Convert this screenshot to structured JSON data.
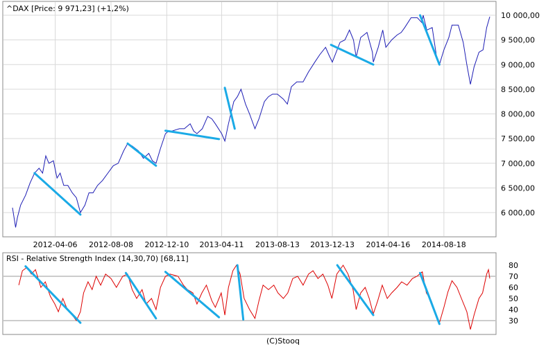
{
  "footer": "(C)Stooq",
  "colors": {
    "price_line": "#1c1cb4",
    "rsi_line": "#dd0000",
    "trendline": "#1aaae6",
    "grid": "#d9d9d9",
    "frame": "#888888",
    "background": "#ffffff"
  },
  "chart_data": [
    {
      "type": "line",
      "title": "^DAX [Price: 9 971,23] (+1,2%)",
      "xlabel": "",
      "ylabel": "",
      "x_start": "2012-01-02",
      "x_end": "2014-11-28",
      "x_tick_labels": [
        "2012-04-06",
        "2012-08-08",
        "2012-12-10",
        "2013-04-11",
        "2013-08-13",
        "2013-12-13",
        "2014-04-16",
        "2014-08-18"
      ],
      "y_tick_labels": [
        "6 000,00",
        "6 500,00",
        "7 000,00",
        "7 500,00",
        "8 000,00",
        "8 500,00",
        "9 000,00",
        "9 500,00",
        "10 000,00"
      ],
      "y_ticks": [
        6000,
        6500,
        7000,
        7500,
        8000,
        8500,
        9000,
        9500,
        10000
      ],
      "ylim": [
        5650,
        10100
      ],
      "grid": true,
      "series": [
        {
          "points": [
            [
              "2012-01-02",
              6100
            ],
            [
              "2012-01-09",
              5700
            ],
            [
              "2012-01-13",
              5900
            ],
            [
              "2012-01-20",
              6150
            ],
            [
              "2012-01-31",
              6350
            ],
            [
              "2012-02-10",
              6600
            ],
            [
              "2012-02-20",
              6800
            ],
            [
              "2012-03-01",
              6900
            ],
            [
              "2012-03-09",
              6800
            ],
            [
              "2012-03-16",
              7150
            ],
            [
              "2012-03-23",
              7000
            ],
            [
              "2012-04-02",
              7050
            ],
            [
              "2012-04-10",
              6700
            ],
            [
              "2012-04-17",
              6800
            ],
            [
              "2012-04-25",
              6550
            ],
            [
              "2012-05-04",
              6550
            ],
            [
              "2012-05-14",
              6400
            ],
            [
              "2012-05-23",
              6300
            ],
            [
              "2012-06-01",
              6000
            ],
            [
              "2012-06-11",
              6150
            ],
            [
              "2012-06-20",
              6400
            ],
            [
              "2012-06-29",
              6400
            ],
            [
              "2012-07-09",
              6550
            ],
            [
              "2012-07-20",
              6650
            ],
            [
              "2012-08-01",
              6800
            ],
            [
              "2012-08-13",
              6950
            ],
            [
              "2012-08-24",
              7000
            ],
            [
              "2012-09-05",
              7250
            ],
            [
              "2012-09-14",
              7400
            ],
            [
              "2012-09-24",
              7350
            ],
            [
              "2012-10-08",
              7250
            ],
            [
              "2012-10-19",
              7100
            ],
            [
              "2012-10-31",
              7200
            ],
            [
              "2012-11-08",
              7050
            ],
            [
              "2012-11-16",
              7000
            ],
            [
              "2012-11-26",
              7300
            ],
            [
              "2012-12-07",
              7600
            ],
            [
              "2012-12-14",
              7650
            ],
            [
              "2012-12-21",
              7650
            ],
            [
              "2013-01-07",
              7700
            ],
            [
              "2013-01-18",
              7700
            ],
            [
              "2013-01-31",
              7800
            ],
            [
              "2013-02-08",
              7650
            ],
            [
              "2013-02-15",
              7600
            ],
            [
              "2013-02-27",
              7700
            ],
            [
              "2013-03-11",
              7950
            ],
            [
              "2013-03-20",
              7900
            ],
            [
              "2013-03-28",
              7800
            ],
            [
              "2013-04-11",
              7600
            ],
            [
              "2013-04-18",
              7450
            ],
            [
              "2013-04-26",
              7800
            ],
            [
              "2013-05-08",
              8250
            ],
            [
              "2013-05-16",
              8350
            ],
            [
              "2013-05-24",
              8500
            ],
            [
              "2013-06-03",
              8200
            ],
            [
              "2013-06-12",
              8000
            ],
            [
              "2013-06-24",
              7700
            ],
            [
              "2013-07-03",
              7900
            ],
            [
              "2013-07-15",
              8250
            ],
            [
              "2013-07-24",
              8350
            ],
            [
              "2013-08-02",
              8400
            ],
            [
              "2013-08-13",
              8400
            ],
            [
              "2013-08-26",
              8300
            ],
            [
              "2013-09-04",
              8200
            ],
            [
              "2013-09-13",
              8550
            ],
            [
              "2013-09-25",
              8650
            ],
            [
              "2013-10-09",
              8650
            ],
            [
              "2013-10-21",
              8850
            ],
            [
              "2013-11-04",
              9050
            ],
            [
              "2013-11-15",
              9200
            ],
            [
              "2013-11-28",
              9350
            ],
            [
              "2013-12-05",
              9200
            ],
            [
              "2013-12-13",
              9050
            ],
            [
              "2013-12-30",
              9450
            ],
            [
              "2014-01-10",
              9500
            ],
            [
              "2014-01-20",
              9700
            ],
            [
              "2014-01-29",
              9500
            ],
            [
              "2014-02-04",
              9150
            ],
            [
              "2014-02-14",
              9550
            ],
            [
              "2014-02-28",
              9650
            ],
            [
              "2014-03-12",
              9250
            ],
            [
              "2014-03-14",
              9050
            ],
            [
              "2014-03-25",
              9350
            ],
            [
              "2014-04-04",
              9700
            ],
            [
              "2014-04-11",
              9350
            ],
            [
              "2014-04-24",
              9500
            ],
            [
              "2014-05-06",
              9600
            ],
            [
              "2014-05-15",
              9650
            ],
            [
              "2014-05-23",
              9750
            ],
            [
              "2014-06-06",
              9950
            ],
            [
              "2014-06-20",
              9950
            ],
            [
              "2014-06-30",
              9850
            ],
            [
              "2014-07-03",
              10000
            ],
            [
              "2014-07-11",
              9700
            ],
            [
              "2014-07-23",
              9750
            ],
            [
              "2014-08-01",
              9200
            ],
            [
              "2014-08-08",
              9000
            ],
            [
              "2014-08-18",
              9300
            ],
            [
              "2014-08-29",
              9550
            ],
            [
              "2014-09-05",
              9800
            ],
            [
              "2014-09-19",
              9800
            ],
            [
              "2014-09-30",
              9450
            ],
            [
              "2014-10-08",
              9000
            ],
            [
              "2014-10-16",
              8600
            ],
            [
              "2014-10-24",
              8950
            ],
            [
              "2014-11-04",
              9250
            ],
            [
              "2014-11-13",
              9300
            ],
            [
              "2014-11-21",
              9750
            ],
            [
              "2014-11-28",
              9971
            ]
          ]
        }
      ],
      "trendlines": [
        [
          [
            "2012-02-20",
            6800
          ],
          [
            "2012-06-01",
            5960
          ]
        ],
        [
          [
            "2012-09-14",
            7400
          ],
          [
            "2012-11-16",
            6950
          ]
        ],
        [
          [
            "2012-12-07",
            7660
          ],
          [
            "2013-04-05",
            7490
          ]
        ],
        [
          [
            "2013-04-18",
            8530
          ],
          [
            "2013-05-10",
            7700
          ]
        ],
        [
          [
            "2013-12-10",
            9400
          ],
          [
            "2014-03-14",
            9000
          ]
        ],
        [
          [
            "2014-06-26",
            10000
          ],
          [
            "2014-08-08",
            9000
          ]
        ]
      ]
    },
    {
      "type": "line",
      "title": "RSI - Relative Strength Index (14,30,70) [68,11]",
      "xlabel": "",
      "ylabel": "",
      "x_start": "2012-01-02",
      "x_end": "2014-11-28",
      "y_tick_labels": [
        "30",
        "40",
        "50",
        "60",
        "70",
        "80"
      ],
      "y_ticks": [
        30,
        40,
        50,
        60,
        70,
        80
      ],
      "ylim": [
        20,
        85
      ],
      "reference_lines": [
        30,
        70
      ],
      "grid": false,
      "series": [
        {
          "points": [
            [
              "2012-01-16",
              62
            ],
            [
              "2012-01-24",
              75
            ],
            [
              "2012-02-03",
              78
            ],
            [
              "2012-02-13",
              72
            ],
            [
              "2012-02-22",
              76
            ],
            [
              "2012-03-05",
              60
            ],
            [
              "2012-03-15",
              65
            ],
            [
              "2012-03-26",
              52
            ],
            [
              "2012-04-05",
              45
            ],
            [
              "2012-04-13",
              38
            ],
            [
              "2012-04-23",
              50
            ],
            [
              "2012-05-03",
              40
            ],
            [
              "2012-05-14",
              35
            ],
            [
              "2012-05-23",
              30
            ],
            [
              "2012-06-01",
              38
            ],
            [
              "2012-06-08",
              55
            ],
            [
              "2012-06-18",
              65
            ],
            [
              "2012-06-27",
              58
            ],
            [
              "2012-07-06",
              70
            ],
            [
              "2012-07-16",
              62
            ],
            [
              "2012-07-27",
              72
            ],
            [
              "2012-08-08",
              68
            ],
            [
              "2012-08-20",
              60
            ],
            [
              "2012-09-03",
              70
            ],
            [
              "2012-09-14",
              72
            ],
            [
              "2012-09-24",
              58
            ],
            [
              "2012-10-04",
              50
            ],
            [
              "2012-10-16",
              58
            ],
            [
              "2012-10-25",
              45
            ],
            [
              "2012-11-06",
              50
            ],
            [
              "2012-11-16",
              40
            ],
            [
              "2012-11-26",
              60
            ],
            [
              "2012-12-07",
              70
            ],
            [
              "2012-12-17",
              72
            ],
            [
              "2013-01-04",
              70
            ],
            [
              "2013-01-16",
              62
            ],
            [
              "2013-01-25",
              58
            ],
            [
              "2013-02-06",
              55
            ],
            [
              "2013-02-15",
              45
            ],
            [
              "2013-02-26",
              55
            ],
            [
              "2013-03-08",
              62
            ],
            [
              "2013-03-20",
              48
            ],
            [
              "2013-03-28",
              42
            ],
            [
              "2013-04-10",
              55
            ],
            [
              "2013-04-18",
              35
            ],
            [
              "2013-04-26",
              60
            ],
            [
              "2013-05-06",
              75
            ],
            [
              "2013-05-14",
              80
            ],
            [
              "2013-05-22",
              72
            ],
            [
              "2013-05-31",
              50
            ],
            [
              "2013-06-12",
              40
            ],
            [
              "2013-06-24",
              32
            ],
            [
              "2013-07-03",
              48
            ],
            [
              "2013-07-12",
              62
            ],
            [
              "2013-07-24",
              58
            ],
            [
              "2013-08-05",
              62
            ],
            [
              "2013-08-14",
              55
            ],
            [
              "2013-08-26",
              50
            ],
            [
              "2013-09-05",
              55
            ],
            [
              "2013-09-16",
              68
            ],
            [
              "2013-09-27",
              70
            ],
            [
              "2013-10-09",
              62
            ],
            [
              "2013-10-21",
              72
            ],
            [
              "2013-10-31",
              75
            ],
            [
              "2013-11-11",
              68
            ],
            [
              "2013-11-22",
              72
            ],
            [
              "2013-12-03",
              62
            ],
            [
              "2013-12-12",
              50
            ],
            [
              "2013-12-23",
              72
            ],
            [
              "2014-01-06",
              80
            ],
            [
              "2014-01-17",
              72
            ],
            [
              "2014-01-28",
              58
            ],
            [
              "2014-02-04",
              40
            ],
            [
              "2014-02-14",
              55
            ],
            [
              "2014-02-24",
              60
            ],
            [
              "2014-03-05",
              50
            ],
            [
              "2014-03-14",
              36
            ],
            [
              "2014-03-24",
              48
            ],
            [
              "2014-04-03",
              62
            ],
            [
              "2014-04-14",
              50
            ],
            [
              "2014-04-24",
              55
            ],
            [
              "2014-05-06",
              60
            ],
            [
              "2014-05-16",
              65
            ],
            [
              "2014-05-28",
              62
            ],
            [
              "2014-06-09",
              68
            ],
            [
              "2014-06-19",
              70
            ],
            [
              "2014-07-01",
              74
            ],
            [
              "2014-07-10",
              55
            ],
            [
              "2014-07-21",
              48
            ],
            [
              "2014-07-31",
              36
            ],
            [
              "2014-08-08",
              28
            ],
            [
              "2014-08-18",
              42
            ],
            [
              "2014-08-27",
              56
            ],
            [
              "2014-09-05",
              66
            ],
            [
              "2014-09-16",
              60
            ],
            [
              "2014-09-26",
              50
            ],
            [
              "2014-10-08",
              38
            ],
            [
              "2014-10-16",
              22
            ],
            [
              "2014-10-24",
              35
            ],
            [
              "2014-11-04",
              50
            ],
            [
              "2014-11-12",
              55
            ],
            [
              "2014-11-21",
              72
            ],
            [
              "2014-11-25",
              76
            ],
            [
              "2014-11-28",
              68
            ]
          ]
        }
      ],
      "trendlines": [
        [
          [
            "2012-01-31",
            79
          ],
          [
            "2012-06-01",
            28
          ]
        ],
        [
          [
            "2012-09-10",
            73
          ],
          [
            "2012-11-16",
            32
          ]
        ],
        [
          [
            "2012-12-07",
            74
          ],
          [
            "2013-04-05",
            33
          ]
        ],
        [
          [
            "2013-05-16",
            80
          ],
          [
            "2013-05-29",
            31
          ]
        ],
        [
          [
            "2013-12-24",
            80
          ],
          [
            "2014-03-14",
            35
          ]
        ],
        [
          [
            "2014-06-26",
            73
          ],
          [
            "2014-08-08",
            27
          ]
        ]
      ]
    }
  ]
}
